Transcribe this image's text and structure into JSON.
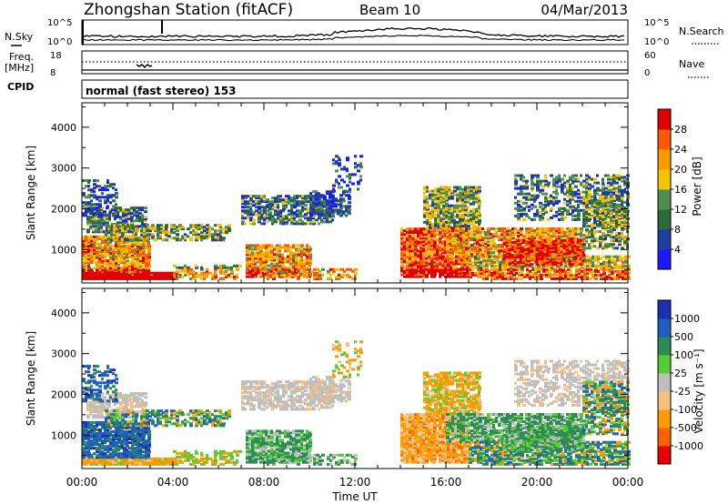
{
  "header": {
    "station": "Zhongshan Station (fitACF)",
    "beam": "Beam 10",
    "date": "04/Mar/2013"
  },
  "strips": {
    "nsky_label": "N.Sky",
    "nsearch_label": "N.Search",
    "freq_label_1": "Freq.",
    "freq_label_2": "[MHz]",
    "nave_label": "Nave",
    "cpid_label": "CPID",
    "cpid_text": "normal (fast stereo) 153",
    "noise_ticks_left": [
      "10^5",
      "10^0"
    ],
    "noise_ticks_right": [
      "10^5",
      "10^0"
    ],
    "freq_ticks_left": [
      "18",
      "8"
    ],
    "nave_ticks_right": [
      "60",
      "0"
    ]
  },
  "colors": {
    "power": [
      "#1a1aff",
      "#1f3f9f",
      "#2e6b3b",
      "#4d8f50",
      "#f5c400",
      "#ff9900",
      "#ff5a00",
      "#e00000"
    ],
    "velocity": [
      "#e60000",
      "#ff6000",
      "#ff9a00",
      "#f5c080",
      "#bebebe",
      "#55cc33",
      "#2e8b57",
      "#1f5fbf",
      "#1a30b0"
    ]
  },
  "chart_data": [
    {
      "type": "heatmap",
      "title": "",
      "xlabel": "",
      "ylabel": "Slant Range [km]",
      "x_ticks": [
        "00:00",
        "04:00",
        "08:00",
        "12:00",
        "16:00",
        "20:00",
        "00:00"
      ],
      "y_ticks": [
        "1000",
        "2000",
        "3000",
        "4000"
      ],
      "ylim": [
        180,
        4600
      ],
      "xlim_hours": [
        0,
        24
      ],
      "colorbar_label": "Power [dB]",
      "colorbar_ticks": [
        "4",
        "8",
        "12",
        "16",
        "20",
        "24",
        "28"
      ],
      "colorbar_range": [
        0,
        30
      ]
    },
    {
      "type": "heatmap",
      "title": "",
      "xlabel": "Time UT",
      "ylabel": "Slant Range [km]",
      "x_ticks": [
        "00:00",
        "04:00",
        "08:00",
        "12:00",
        "16:00",
        "20:00",
        "00:00"
      ],
      "y_ticks": [
        "1000",
        "2000",
        "3000",
        "4000"
      ],
      "ylim": [
        180,
        4600
      ],
      "xlim_hours": [
        0,
        24
      ],
      "colorbar_label": "Velocity [m s⁻¹]",
      "colorbar_ticks": [
        "1000",
        "500",
        "100",
        "25",
        "-25",
        "-100",
        "-500",
        "-1000"
      ]
    }
  ]
}
